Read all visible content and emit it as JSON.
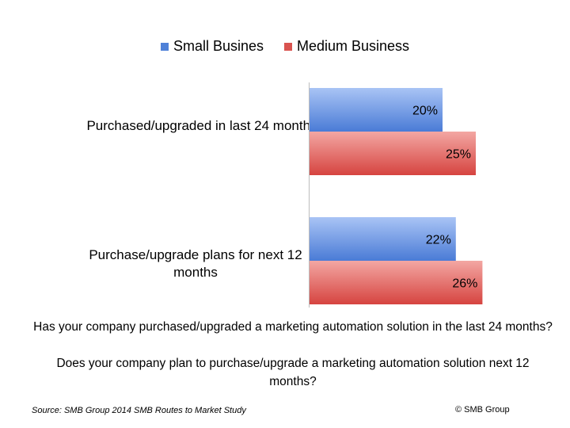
{
  "chart_data": {
    "type": "bar",
    "orientation": "horizontal",
    "categories": [
      "Purchased/upgraded in last 24 months",
      "Purchase/upgrade plans for next 12 months"
    ],
    "series": [
      {
        "name": "Small Busines",
        "values": [
          20,
          22
        ],
        "labels": [
          "20%",
          "22%"
        ],
        "color": "#4f81d8"
      },
      {
        "name": "Medium Business",
        "values": [
          25,
          26
        ],
        "labels": [
          "25%",
          "26%"
        ],
        "color": "#d9534f"
      }
    ],
    "value_unit": "%",
    "legend_position": "top",
    "grid": false,
    "xlim": [
      0,
      26
    ]
  },
  "question_1": "Has your company purchased/upgraded a marketing automation solution in the last 24 months?",
  "question_2": "Does your company plan to purchase/upgrade a marketing automation solution next 12 months?",
  "source": "Source: SMB Group 2014 SMB Routes to Market Study",
  "copyright": "© SMB Group"
}
